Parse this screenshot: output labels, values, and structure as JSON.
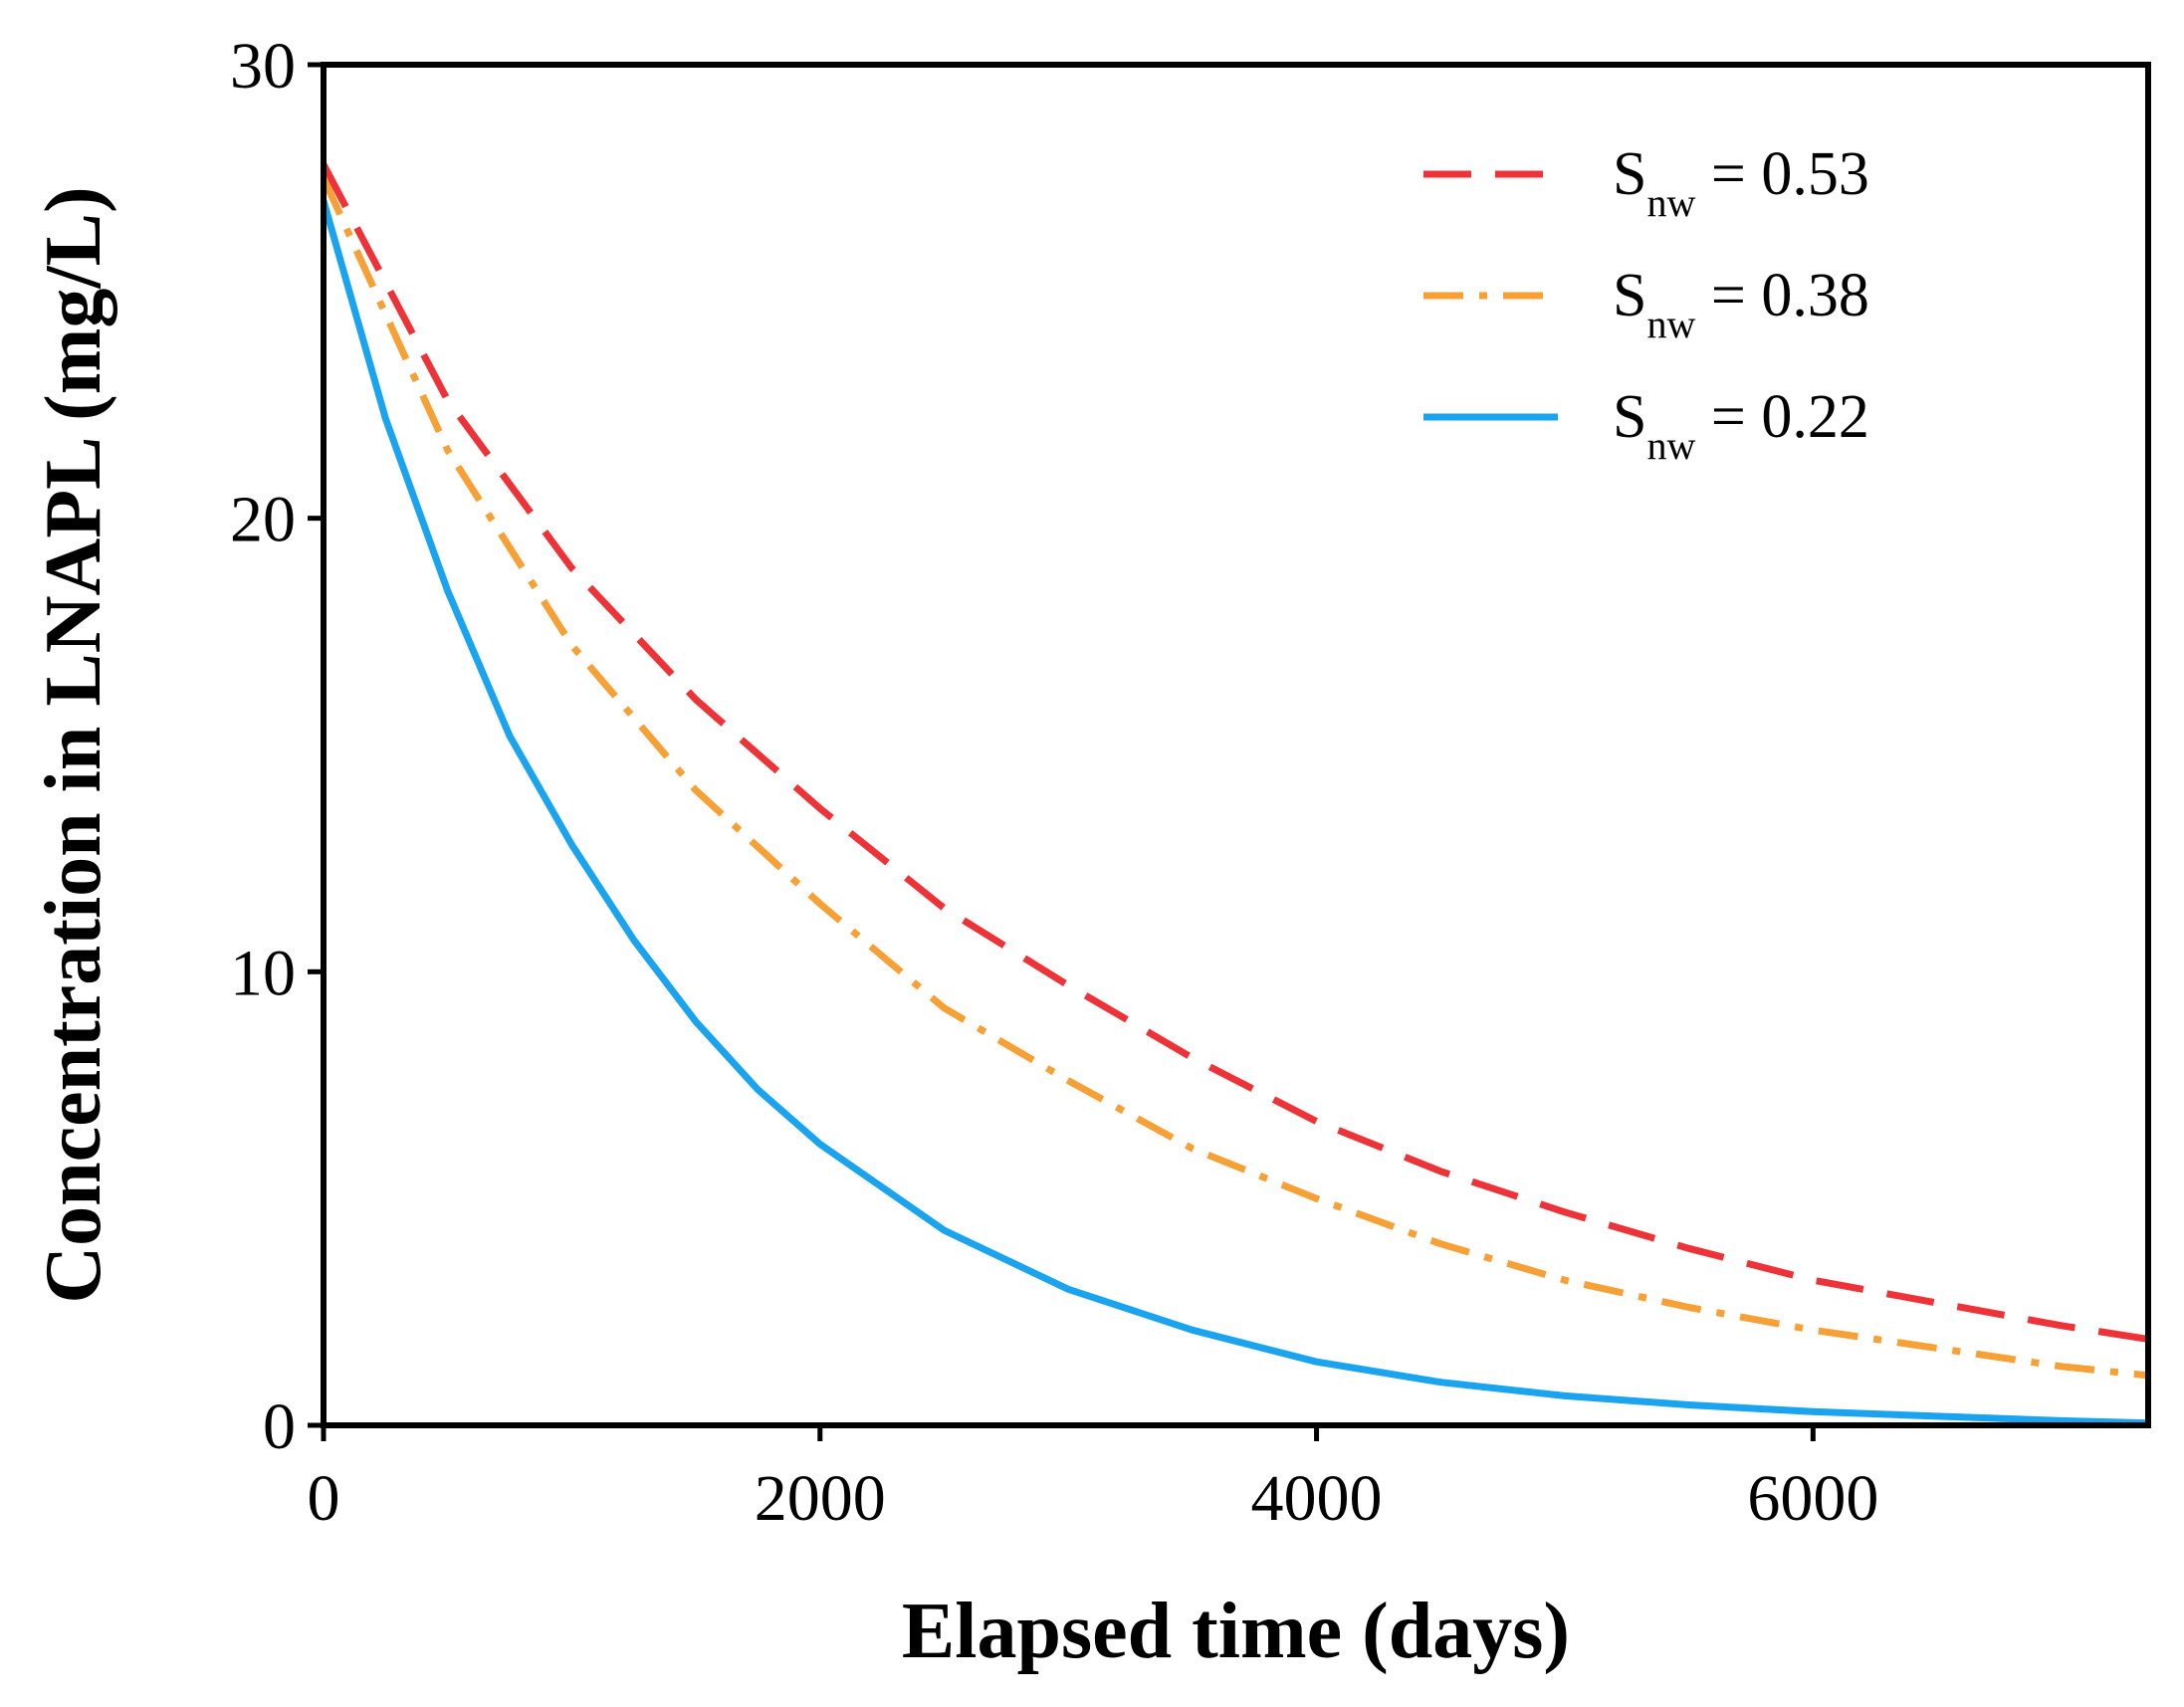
{
  "chart_data": {
    "type": "line",
    "title": "",
    "xlabel": "Elapsed time (days)",
    "ylabel": "Concentration in LNAPL (mg/L)",
    "xlim": [
      0,
      7350
    ],
    "ylim": [
      0,
      30
    ],
    "xticks": [
      0,
      2000,
      4000,
      6000
    ],
    "yticks": [
      0,
      10,
      20,
      30
    ],
    "legend_position": "top-right",
    "colors": {
      "axis": "#000000",
      "s053": "#ee3338",
      "s038": "#f7a035",
      "s022": "#1aa3ee"
    },
    "series": [
      {
        "id": "s053",
        "name": "S",
        "subscript": "nw",
        "suffix": " = 0.53",
        "style": "dashed",
        "x": [
          0,
          500,
          1000,
          1500,
          2000,
          2500,
          3000,
          3500,
          4000,
          4500,
          5000,
          5500,
          6000,
          6500,
          7000,
          7350
        ],
        "y": [
          27.8,
          22.6,
          18.9,
          16.0,
          13.6,
          11.4,
          9.7,
          8.1,
          6.7,
          5.6,
          4.7,
          3.9,
          3.2,
          2.7,
          2.2,
          1.9
        ]
      },
      {
        "id": "s038",
        "name": "S",
        "subscript": "nw",
        "suffix": " = 0.38",
        "style": "dash-dot",
        "x": [
          0,
          500,
          1000,
          1500,
          2000,
          2500,
          3000,
          3500,
          4000,
          4500,
          5000,
          5500,
          6000,
          6500,
          7000,
          7350
        ],
        "y": [
          27.5,
          21.5,
          17.2,
          14.0,
          11.5,
          9.2,
          7.6,
          6.1,
          5.0,
          4.0,
          3.2,
          2.6,
          2.1,
          1.7,
          1.3,
          1.1
        ]
      },
      {
        "id": "s022",
        "name": "S",
        "subscript": "nw",
        "suffix": " = 0.22",
        "style": "solid",
        "x": [
          0,
          250,
          500,
          750,
          1000,
          1250,
          1500,
          1750,
          2000,
          2500,
          3000,
          3500,
          4000,
          4500,
          5000,
          5500,
          6000,
          6500,
          7000,
          7350
        ],
        "y": [
          27.0,
          22.2,
          18.4,
          15.2,
          12.8,
          10.7,
          8.9,
          7.4,
          6.2,
          4.3,
          3.0,
          2.1,
          1.4,
          0.95,
          0.65,
          0.45,
          0.3,
          0.2,
          0.1,
          0.05
        ]
      }
    ]
  }
}
